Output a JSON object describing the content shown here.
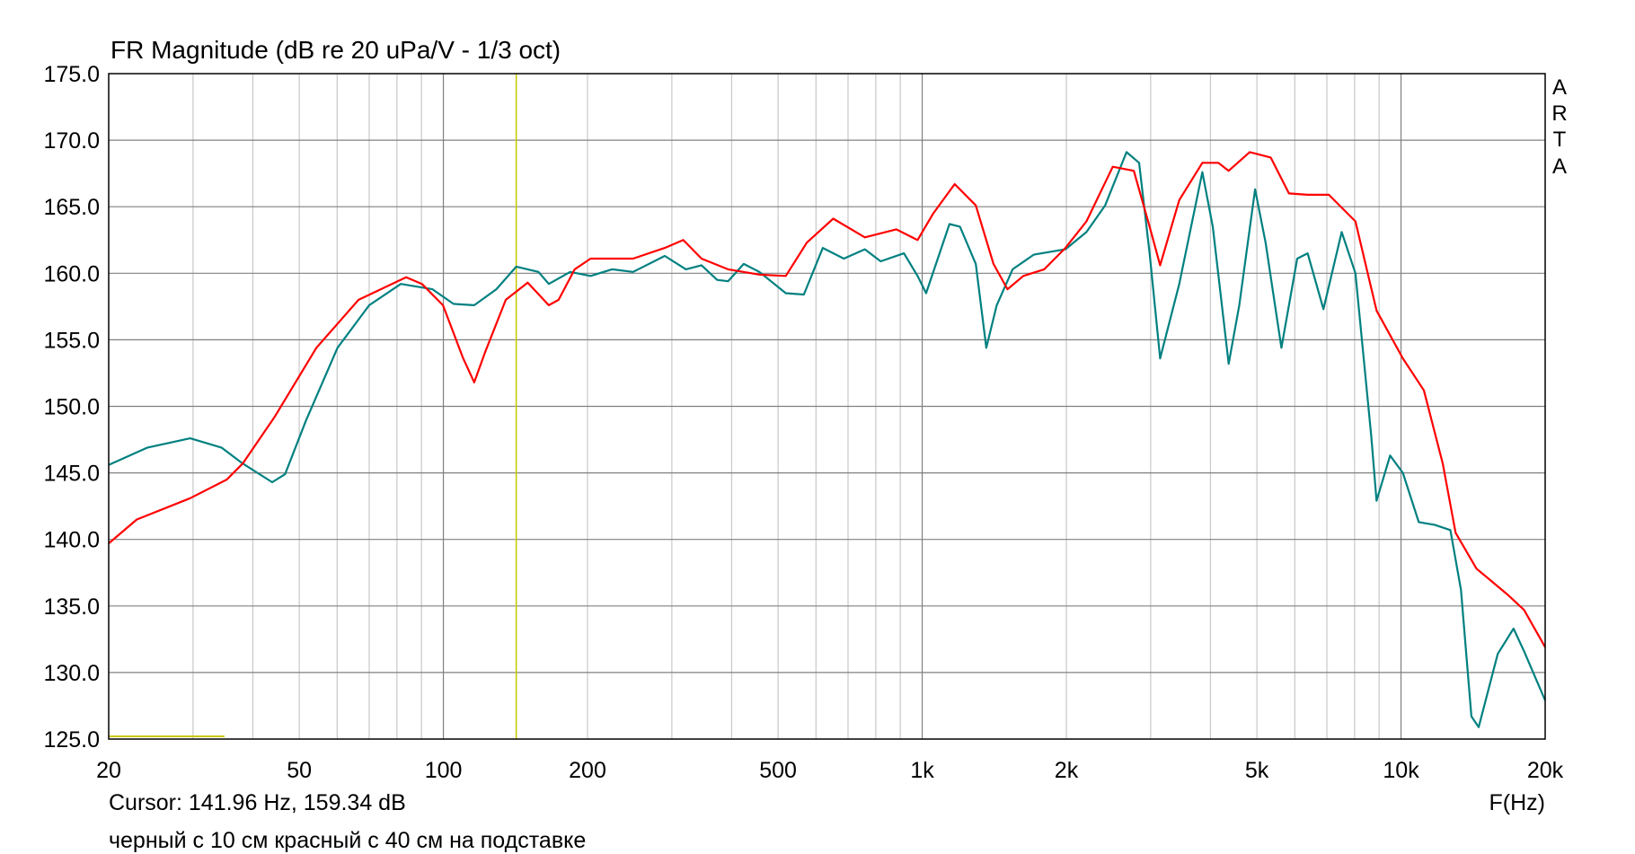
{
  "chart_data": {
    "type": "line",
    "title": "FR Magnitude (dB re 20 uPa/V - 1/3 oct)",
    "xlabel": "F(Hz)",
    "ylabel": "",
    "xscale": "log",
    "xlim": [
      20,
      20000
    ],
    "ylim": [
      125,
      175
    ],
    "grid": true,
    "x_ticks": [
      {
        "value": 20,
        "label": "20"
      },
      {
        "value": 50,
        "label": "50"
      },
      {
        "value": 100,
        "label": "100"
      },
      {
        "value": 200,
        "label": "200"
      },
      {
        "value": 500,
        "label": "500"
      },
      {
        "value": 1000,
        "label": "1k"
      },
      {
        "value": 2000,
        "label": "2k"
      },
      {
        "value": 5000,
        "label": "5k"
      },
      {
        "value": 10000,
        "label": "10k"
      },
      {
        "value": 20000,
        "label": "20k"
      }
    ],
    "y_ticks": [
      {
        "value": 175,
        "label": "175.0"
      },
      {
        "value": 170,
        "label": "170.0"
      },
      {
        "value": 165,
        "label": "165.0"
      },
      {
        "value": 160,
        "label": "160.0"
      },
      {
        "value": 155,
        "label": "155.0"
      },
      {
        "value": 150,
        "label": "150.0"
      },
      {
        "value": 145,
        "label": "145.0"
      },
      {
        "value": 140,
        "label": "140.0"
      },
      {
        "value": 135,
        "label": "135.0"
      },
      {
        "value": 130,
        "label": "130.0"
      },
      {
        "value": 125,
        "label": "125.0"
      }
    ],
    "cursor": {
      "frequency": 141.96,
      "level": 159.34,
      "text": "Cursor: 141.96 Hz, 159.34 dB",
      "color": "#c8c800"
    },
    "caption": "черный с 10 см красный с 40 см на подставке",
    "watermark": [
      "A",
      "R",
      "T",
      "A"
    ],
    "series": [
      {
        "color": "#008080",
        "points": [
          [
            20,
            145.6
          ],
          [
            24.1,
            146.9
          ],
          [
            29.6,
            147.6
          ],
          [
            34.4,
            146.9
          ],
          [
            38.1,
            145.7
          ],
          [
            43.9,
            144.3
          ],
          [
            46.7,
            144.9
          ],
          [
            51.6,
            148.9
          ],
          [
            60.1,
            154.4
          ],
          [
            70,
            157.6
          ],
          [
            81.5,
            159.2
          ],
          [
            94.9,
            158.8
          ],
          [
            105,
            157.7
          ],
          [
            116,
            157.6
          ],
          [
            129,
            158.8
          ],
          [
            142,
            160.5
          ],
          [
            158,
            160.1
          ],
          [
            166,
            159.2
          ],
          [
            184,
            160.1
          ],
          [
            203,
            159.8
          ],
          [
            225,
            160.3
          ],
          [
            249,
            160.1
          ],
          [
            290,
            161.3
          ],
          [
            321,
            160.3
          ],
          [
            346,
            160.6
          ],
          [
            373,
            159.5
          ],
          [
            393,
            159.4
          ],
          [
            424,
            160.7
          ],
          [
            457,
            160.1
          ],
          [
            519,
            158.5
          ],
          [
            566,
            158.4
          ],
          [
            620,
            161.9
          ],
          [
            686,
            161.1
          ],
          [
            759,
            161.8
          ],
          [
            819,
            160.9
          ],
          [
            916,
            161.5
          ],
          [
            978,
            159.8
          ],
          [
            1019,
            158.5
          ],
          [
            1140,
            163.7
          ],
          [
            1199,
            163.5
          ],
          [
            1294,
            160.7
          ],
          [
            1361,
            154.4
          ],
          [
            1431,
            157.6
          ],
          [
            1545,
            160.3
          ],
          [
            1710,
            161.4
          ],
          [
            1991,
            161.8
          ],
          [
            2203,
            163.1
          ],
          [
            2410,
            165.1
          ],
          [
            2671,
            169.1
          ],
          [
            2838,
            168.3
          ],
          [
            2985,
            161.5
          ],
          [
            3140,
            153.6
          ],
          [
            3443,
            159.2
          ],
          [
            3846,
            167.6
          ],
          [
            4045,
            163.5
          ],
          [
            4365,
            153.2
          ],
          [
            4594,
            157.6
          ],
          [
            4957,
            166.3
          ],
          [
            5213,
            162.3
          ],
          [
            5625,
            154.4
          ],
          [
            6070,
            161.1
          ],
          [
            6383,
            161.5
          ],
          [
            6886,
            157.3
          ],
          [
            7516,
            163.1
          ],
          [
            8032,
            160.0
          ],
          [
            8668,
            147.7
          ],
          [
            8890,
            142.9
          ],
          [
            9490,
            146.3
          ],
          [
            10090,
            145.0
          ],
          [
            10890,
            141.3
          ],
          [
            11750,
            141.1
          ],
          [
            12680,
            140.7
          ],
          [
            13340,
            136.2
          ],
          [
            14030,
            126.7
          ],
          [
            14530,
            125.9
          ],
          [
            15920,
            131.4
          ],
          [
            17180,
            133.3
          ],
          [
            18070,
            131.6
          ],
          [
            20000,
            127.9
          ]
        ]
      },
      {
        "color": "#ff0000",
        "points": [
          [
            20,
            139.7
          ],
          [
            22.9,
            141.5
          ],
          [
            29.6,
            143.1
          ],
          [
            35.3,
            144.5
          ],
          [
            38.1,
            145.7
          ],
          [
            44.4,
            149.2
          ],
          [
            54.3,
            154.4
          ],
          [
            66.5,
            158.0
          ],
          [
            83.6,
            159.7
          ],
          [
            90.2,
            159.2
          ],
          [
            99.8,
            157.6
          ],
          [
            110,
            153.6
          ],
          [
            116,
            151.8
          ],
          [
            122,
            154.0
          ],
          [
            135,
            158.0
          ],
          [
            150,
            159.3
          ],
          [
            166,
            157.6
          ],
          [
            174,
            158.0
          ],
          [
            188,
            160.3
          ],
          [
            203,
            161.1
          ],
          [
            249,
            161.1
          ],
          [
            290,
            161.9
          ],
          [
            317,
            162.5
          ],
          [
            346,
            161.1
          ],
          [
            393,
            160.3
          ],
          [
            457,
            159.9
          ],
          [
            519,
            159.8
          ],
          [
            574,
            162.3
          ],
          [
            652,
            164.1
          ],
          [
            759,
            162.7
          ],
          [
            883,
            163.3
          ],
          [
            978,
            162.5
          ],
          [
            1055,
            164.5
          ],
          [
            1169,
            166.7
          ],
          [
            1294,
            165.1
          ],
          [
            1409,
            160.7
          ],
          [
            1507,
            158.8
          ],
          [
            1626,
            159.8
          ],
          [
            1798,
            160.3
          ],
          [
            1991,
            161.9
          ],
          [
            2203,
            163.9
          ],
          [
            2500,
            168.0
          ],
          [
            2767,
            167.7
          ],
          [
            2985,
            163.5
          ],
          [
            3140,
            160.6
          ],
          [
            3443,
            165.5
          ],
          [
            3846,
            168.3
          ],
          [
            4152,
            168.3
          ],
          [
            4365,
            167.7
          ],
          [
            4830,
            169.1
          ],
          [
            5343,
            168.7
          ],
          [
            5833,
            166.0
          ],
          [
            6383,
            165.9
          ],
          [
            7066,
            165.9
          ],
          [
            8032,
            163.9
          ],
          [
            8890,
            157.2
          ],
          [
            10090,
            153.6
          ],
          [
            11160,
            151.2
          ],
          [
            12220,
            145.7
          ],
          [
            13000,
            140.5
          ],
          [
            14380,
            137.8
          ],
          [
            16750,
            135.8
          ],
          [
            18070,
            134.7
          ],
          [
            20000,
            131.9
          ]
        ]
      }
    ]
  }
}
